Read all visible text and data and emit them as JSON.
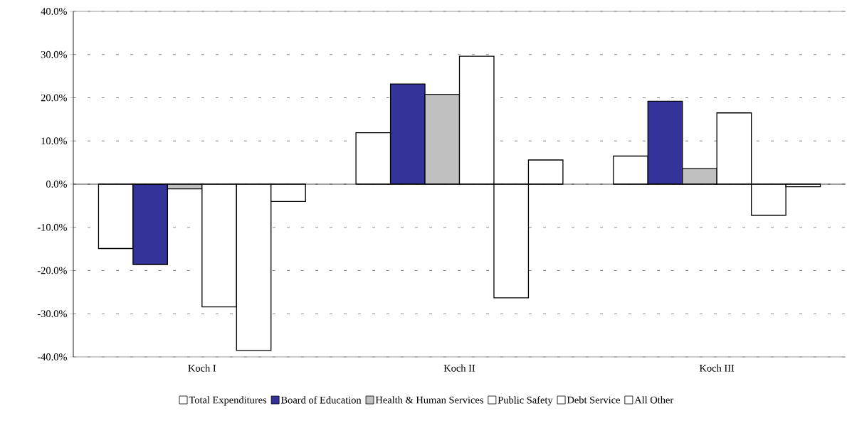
{
  "chart_data": {
    "type": "bar",
    "categories": [
      "Koch I",
      "Koch II",
      "Koch III"
    ],
    "series": [
      {
        "name": "Total Expenditures",
        "color": "#ffffff",
        "values": [
          -14.9,
          11.9,
          6.5
        ]
      },
      {
        "name": "Board of Education",
        "color": "#333399",
        "values": [
          -18.6,
          23.2,
          19.2
        ]
      },
      {
        "name": "Health & Human Services",
        "color": "#c0c0c0",
        "values": [
          -1.1,
          20.8,
          3.6
        ]
      },
      {
        "name": "Public Safety",
        "color": "#ffffff",
        "values": [
          -28.4,
          29.6,
          16.5
        ]
      },
      {
        "name": "Debt Service",
        "color": "#ffffff",
        "values": [
          -38.5,
          -26.3,
          -7.2
        ]
      },
      {
        "name": "All Other",
        "color": "#ffffff",
        "values": [
          -4.0,
          5.6,
          -0.6
        ]
      }
    ],
    "ylim": [
      -40,
      40
    ],
    "yticks": [
      {
        "value": -40,
        "label": "-40.0%"
      },
      {
        "value": -30,
        "label": "-30.0%"
      },
      {
        "value": -20,
        "label": "-20.0%"
      },
      {
        "value": -10,
        "label": "-10.0%"
      },
      {
        "value": 0,
        "label": "0.0%"
      },
      {
        "value": 10,
        "label": "10.0%"
      },
      {
        "value": 20,
        "label": "20.0%"
      },
      {
        "value": 30,
        "label": "30.0%"
      },
      {
        "value": 40,
        "label": "40.0%"
      }
    ],
    "grid": "y",
    "legend": "bottom"
  }
}
